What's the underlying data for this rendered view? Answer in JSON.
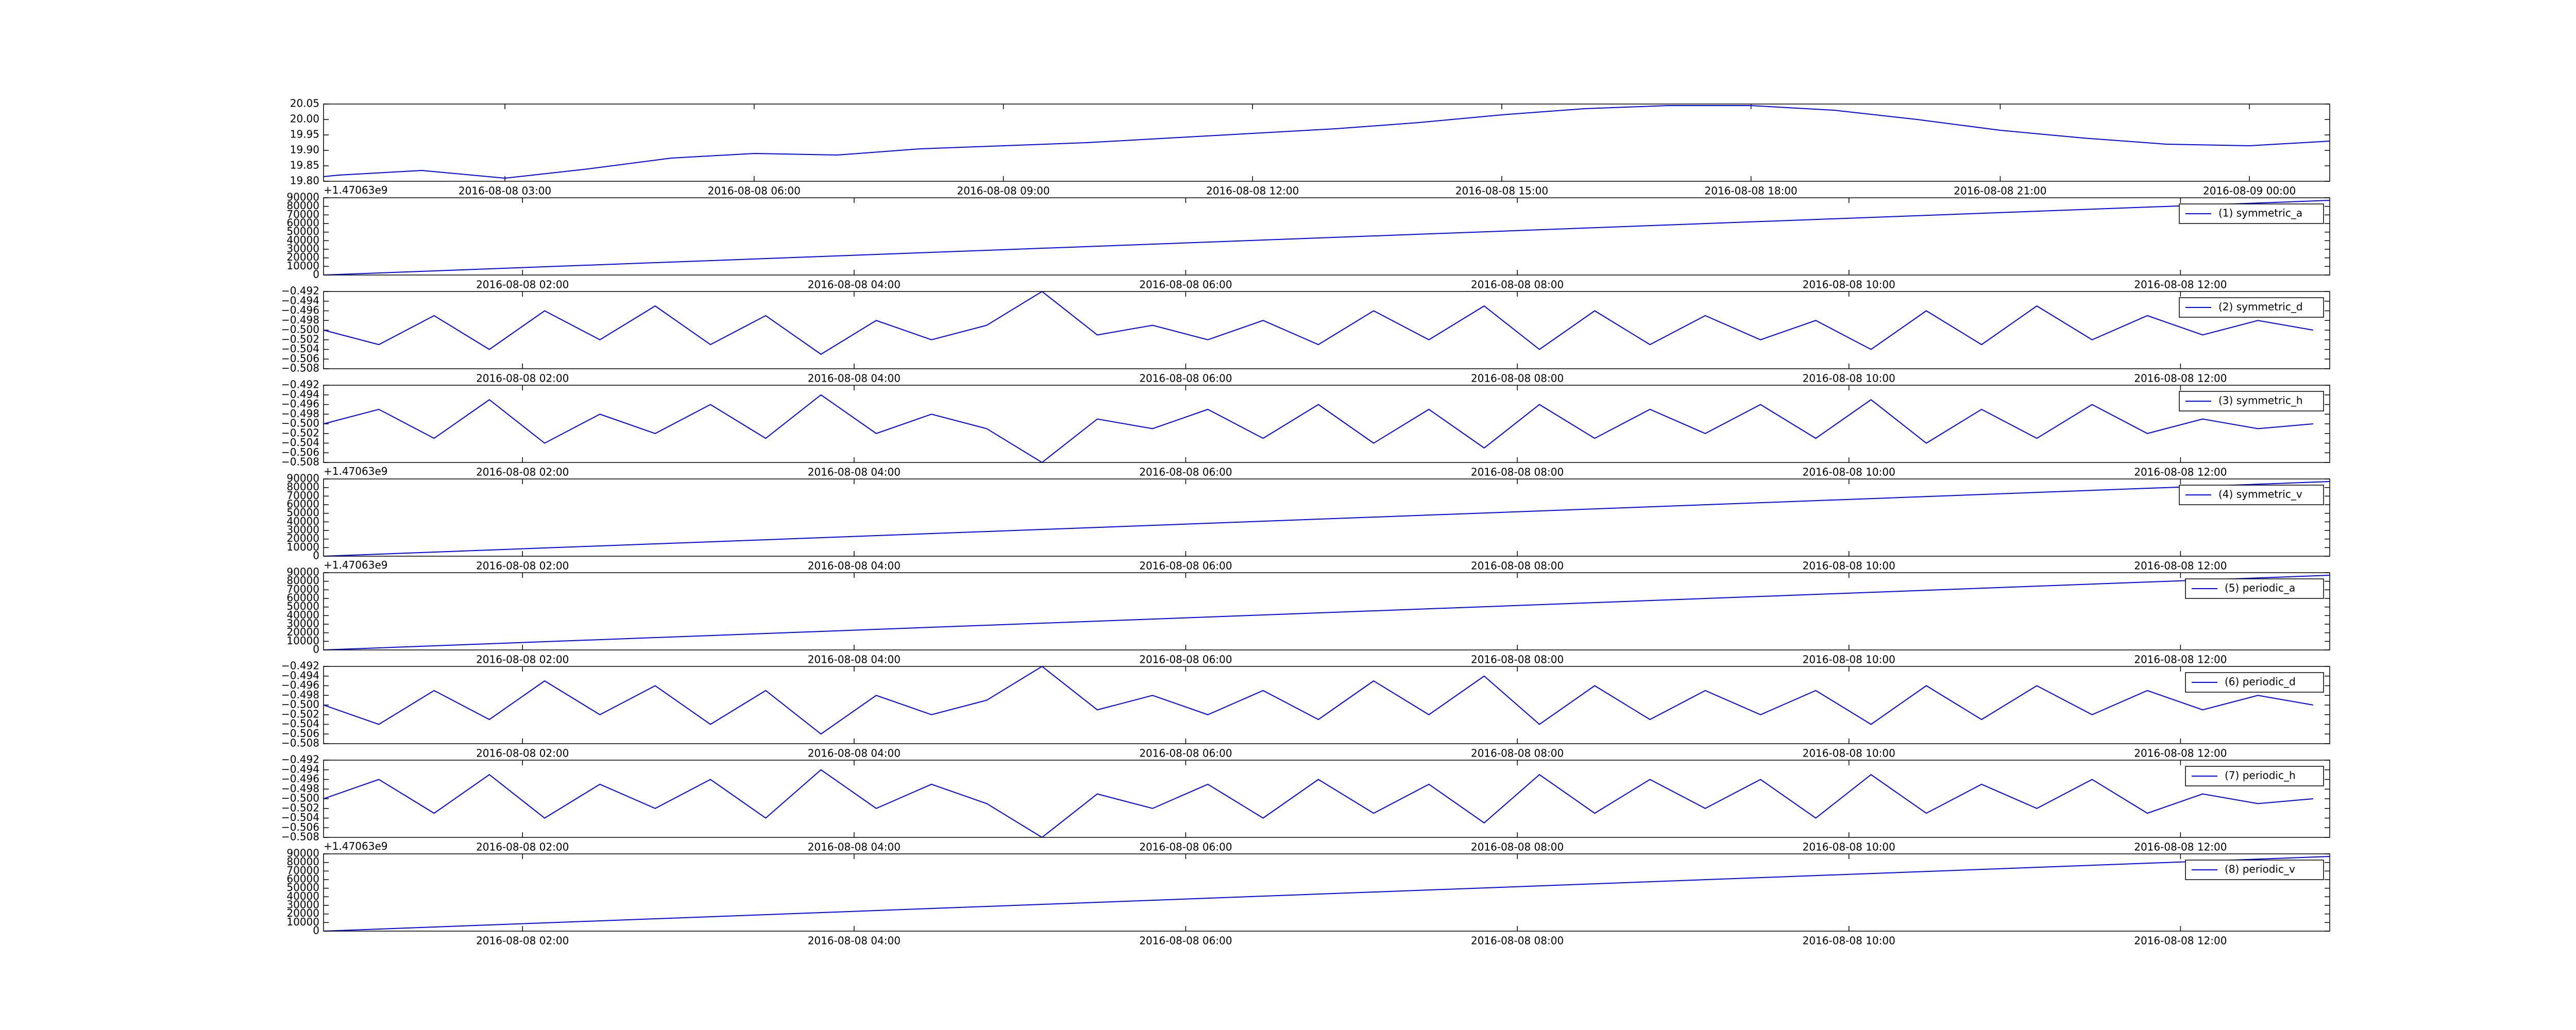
{
  "chart_data": [
    {
      "type": "line",
      "color": "#0000ff",
      "x": [
        "2016-08-08 00:49",
        "2016-08-08 01:00",
        "2016-08-08 02:00",
        "2016-08-08 03:00",
        "2016-08-08 04:00",
        "2016-08-08 05:00",
        "2016-08-08 06:00",
        "2016-08-08 07:00",
        "2016-08-08 08:00",
        "2016-08-08 09:00",
        "2016-08-08 10:00",
        "2016-08-08 11:00",
        "2016-08-08 12:00",
        "2016-08-08 13:00",
        "2016-08-08 14:00",
        "2016-08-08 15:00",
        "2016-08-08 16:00",
        "2016-08-08 17:00",
        "2016-08-08 18:00",
        "2016-08-08 19:00",
        "2016-08-08 20:00",
        "2016-08-08 21:00",
        "2016-08-08 22:00",
        "2016-08-08 23:00",
        "2016-08-09 00:00",
        "2016-08-09 00:58"
      ],
      "values": [
        19.815,
        19.82,
        19.835,
        19.81,
        19.84,
        19.875,
        19.89,
        19.885,
        19.905,
        19.915,
        19.925,
        19.94,
        19.955,
        19.97,
        19.99,
        20.015,
        20.035,
        20.045,
        20.045,
        20.03,
        20.0,
        19.965,
        19.94,
        19.92,
        19.915,
        19.93
      ],
      "xlim": [
        "2016-08-08 00:49",
        "2016-08-09 00:58"
      ],
      "xticks": [
        "2016-08-08 03:00",
        "2016-08-08 06:00",
        "2016-08-08 09:00",
        "2016-08-08 12:00",
        "2016-08-08 15:00",
        "2016-08-08 18:00",
        "2016-08-08 21:00",
        "2016-08-09 00:00"
      ],
      "ylim": [
        19.8,
        20.05
      ],
      "yticks": [
        {
          "value": 19.8,
          "label": "19.80"
        },
        {
          "value": 19.85,
          "label": "19.85"
        },
        {
          "value": 19.9,
          "label": "19.90"
        },
        {
          "value": 19.95,
          "label": "19.95"
        },
        {
          "value": 20.0,
          "label": "20.00"
        },
        {
          "value": 20.05,
          "label": "20.05"
        }
      ]
    },
    {
      "type": "line",
      "offset_text": "+1.47063e9",
      "legend": "upper right",
      "series": [
        {
          "name": "(1) symmetric_a",
          "color": "#0000ff",
          "x": [
            "2016-08-08 00:48",
            "2016-08-08 12:54"
          ],
          "values": [
            0,
            87000
          ]
        }
      ],
      "xlim": [
        "2016-08-08 00:48",
        "2016-08-08 12:54"
      ],
      "xticks": [
        "2016-08-08 02:00",
        "2016-08-08 04:00",
        "2016-08-08 06:00",
        "2016-08-08 08:00",
        "2016-08-08 10:00",
        "2016-08-08 12:00"
      ],
      "ylim": [
        0,
        90000
      ],
      "yticks": [
        0,
        10000,
        20000,
        30000,
        40000,
        50000,
        60000,
        70000,
        80000,
        90000
      ]
    },
    {
      "type": "line",
      "legend": "upper right",
      "series": [
        {
          "name": "(2) symmetric_d",
          "color": "#0000ff",
          "x": [
            "2016-08-08 00:48",
            "2016-08-08 01:08",
            "2016-08-08 01:28",
            "2016-08-08 01:48",
            "2016-08-08 02:08",
            "2016-08-08 02:28",
            "2016-08-08 02:48",
            "2016-08-08 03:08",
            "2016-08-08 03:28",
            "2016-08-08 03:48",
            "2016-08-08 04:08",
            "2016-08-08 04:28",
            "2016-08-08 04:48",
            "2016-08-08 05:08",
            "2016-08-08 05:28",
            "2016-08-08 05:48",
            "2016-08-08 06:08",
            "2016-08-08 06:28",
            "2016-08-08 06:48",
            "2016-08-08 07:08",
            "2016-08-08 07:28",
            "2016-08-08 07:48",
            "2016-08-08 08:08",
            "2016-08-08 08:28",
            "2016-08-08 08:48",
            "2016-08-08 09:08",
            "2016-08-08 09:28",
            "2016-08-08 09:48",
            "2016-08-08 10:08",
            "2016-08-08 10:28",
            "2016-08-08 10:48",
            "2016-08-08 11:08",
            "2016-08-08 11:28",
            "2016-08-08 11:48",
            "2016-08-08 12:08",
            "2016-08-08 12:28",
            "2016-08-08 12:48"
          ],
          "values": [
            -0.5,
            -0.503,
            -0.497,
            -0.504,
            -0.496,
            -0.502,
            -0.495,
            -0.503,
            -0.497,
            -0.505,
            -0.498,
            -0.502,
            -0.499,
            -0.492,
            -0.501,
            -0.499,
            -0.502,
            -0.498,
            -0.503,
            -0.496,
            -0.502,
            -0.495,
            -0.504,
            -0.496,
            -0.503,
            -0.497,
            -0.502,
            -0.498,
            -0.504,
            -0.496,
            -0.503,
            -0.495,
            -0.502,
            -0.497,
            -0.501,
            -0.498,
            -0.5
          ]
        }
      ],
      "xlim": [
        "2016-08-08 00:48",
        "2016-08-08 12:54"
      ],
      "xticks": [
        "2016-08-08 02:00",
        "2016-08-08 04:00",
        "2016-08-08 06:00",
        "2016-08-08 08:00",
        "2016-08-08 10:00",
        "2016-08-08 12:00"
      ],
      "ylim": [
        -0.508,
        -0.492
      ],
      "yticks": [
        {
          "value": -0.508,
          "label": "−0.508"
        },
        {
          "value": -0.506,
          "label": "−0.506"
        },
        {
          "value": -0.504,
          "label": "−0.504"
        },
        {
          "value": -0.502,
          "label": "−0.502"
        },
        {
          "value": -0.5,
          "label": "−0.500"
        },
        {
          "value": -0.498,
          "label": "−0.498"
        },
        {
          "value": -0.496,
          "label": "−0.496"
        },
        {
          "value": -0.494,
          "label": "−0.494"
        },
        {
          "value": -0.492,
          "label": "−0.492"
        }
      ]
    },
    {
      "type": "line",
      "legend": "upper right",
      "series": [
        {
          "name": "(3) symmetric_h",
          "color": "#0000ff",
          "x": [
            "2016-08-08 00:48",
            "2016-08-08 01:08",
            "2016-08-08 01:28",
            "2016-08-08 01:48",
            "2016-08-08 02:08",
            "2016-08-08 02:28",
            "2016-08-08 02:48",
            "2016-08-08 03:08",
            "2016-08-08 03:28",
            "2016-08-08 03:48",
            "2016-08-08 04:08",
            "2016-08-08 04:28",
            "2016-08-08 04:48",
            "2016-08-08 05:08",
            "2016-08-08 05:28",
            "2016-08-08 05:48",
            "2016-08-08 06:08",
            "2016-08-08 06:28",
            "2016-08-08 06:48",
            "2016-08-08 07:08",
            "2016-08-08 07:28",
            "2016-08-08 07:48",
            "2016-08-08 08:08",
            "2016-08-08 08:28",
            "2016-08-08 08:48",
            "2016-08-08 09:08",
            "2016-08-08 09:28",
            "2016-08-08 09:48",
            "2016-08-08 10:08",
            "2016-08-08 10:28",
            "2016-08-08 10:48",
            "2016-08-08 11:08",
            "2016-08-08 11:28",
            "2016-08-08 11:48",
            "2016-08-08 12:08",
            "2016-08-08 12:28",
            "2016-08-08 12:48"
          ],
          "values": [
            -0.5,
            -0.497,
            -0.503,
            -0.495,
            -0.504,
            -0.498,
            -0.502,
            -0.496,
            -0.503,
            -0.494,
            -0.502,
            -0.498,
            -0.501,
            -0.508,
            -0.499,
            -0.501,
            -0.497,
            -0.503,
            -0.496,
            -0.504,
            -0.497,
            -0.505,
            -0.496,
            -0.503,
            -0.497,
            -0.502,
            -0.496,
            -0.503,
            -0.495,
            -0.504,
            -0.497,
            -0.503,
            -0.496,
            -0.502,
            -0.499,
            -0.501,
            -0.5
          ]
        }
      ],
      "xlim": [
        "2016-08-08 00:48",
        "2016-08-08 12:54"
      ],
      "xticks": [
        "2016-08-08 02:00",
        "2016-08-08 04:00",
        "2016-08-08 06:00",
        "2016-08-08 08:00",
        "2016-08-08 10:00",
        "2016-08-08 12:00"
      ],
      "ylim": [
        -0.508,
        -0.492
      ],
      "yticks": [
        {
          "value": -0.508,
          "label": "−0.508"
        },
        {
          "value": -0.506,
          "label": "−0.506"
        },
        {
          "value": -0.504,
          "label": "−0.504"
        },
        {
          "value": -0.502,
          "label": "−0.502"
        },
        {
          "value": -0.5,
          "label": "−0.500"
        },
        {
          "value": -0.498,
          "label": "−0.498"
        },
        {
          "value": -0.496,
          "label": "−0.496"
        },
        {
          "value": -0.494,
          "label": "−0.494"
        },
        {
          "value": -0.492,
          "label": "−0.492"
        }
      ]
    },
    {
      "type": "line",
      "offset_text": "+1.47063e9",
      "legend": "upper right",
      "series": [
        {
          "name": "(4) symmetric_v",
          "color": "#0000ff",
          "x": [
            "2016-08-08 00:48",
            "2016-08-08 12:54"
          ],
          "values": [
            0,
            87000
          ]
        }
      ],
      "xlim": [
        "2016-08-08 00:48",
        "2016-08-08 12:54"
      ],
      "xticks": [
        "2016-08-08 02:00",
        "2016-08-08 04:00",
        "2016-08-08 06:00",
        "2016-08-08 08:00",
        "2016-08-08 10:00",
        "2016-08-08 12:00"
      ],
      "ylim": [
        0,
        90000
      ],
      "yticks": [
        0,
        10000,
        20000,
        30000,
        40000,
        50000,
        60000,
        70000,
        80000,
        90000
      ]
    },
    {
      "type": "line",
      "offset_text": "+1.47063e9",
      "legend": "upper right",
      "series": [
        {
          "name": "(5) periodic_a",
          "color": "#0000ff",
          "x": [
            "2016-08-08 00:48",
            "2016-08-08 12:54"
          ],
          "values": [
            0,
            87000
          ]
        }
      ],
      "xlim": [
        "2016-08-08 00:48",
        "2016-08-08 12:54"
      ],
      "xticks": [
        "2016-08-08 02:00",
        "2016-08-08 04:00",
        "2016-08-08 06:00",
        "2016-08-08 08:00",
        "2016-08-08 10:00",
        "2016-08-08 12:00"
      ],
      "ylim": [
        0,
        90000
      ],
      "yticks": [
        0,
        10000,
        20000,
        30000,
        40000,
        50000,
        60000,
        70000,
        80000,
        90000
      ]
    },
    {
      "type": "line",
      "legend": "upper right",
      "series": [
        {
          "name": "(6) periodic_d",
          "color": "#0000ff",
          "x": [
            "2016-08-08 00:48",
            "2016-08-08 01:08",
            "2016-08-08 01:28",
            "2016-08-08 01:48",
            "2016-08-08 02:08",
            "2016-08-08 02:28",
            "2016-08-08 02:48",
            "2016-08-08 03:08",
            "2016-08-08 03:28",
            "2016-08-08 03:48",
            "2016-08-08 04:08",
            "2016-08-08 04:28",
            "2016-08-08 04:48",
            "2016-08-08 05:08",
            "2016-08-08 05:28",
            "2016-08-08 05:48",
            "2016-08-08 06:08",
            "2016-08-08 06:28",
            "2016-08-08 06:48",
            "2016-08-08 07:08",
            "2016-08-08 07:28",
            "2016-08-08 07:48",
            "2016-08-08 08:08",
            "2016-08-08 08:28",
            "2016-08-08 08:48",
            "2016-08-08 09:08",
            "2016-08-08 09:28",
            "2016-08-08 09:48",
            "2016-08-08 10:08",
            "2016-08-08 10:28",
            "2016-08-08 10:48",
            "2016-08-08 11:08",
            "2016-08-08 11:28",
            "2016-08-08 11:48",
            "2016-08-08 12:08",
            "2016-08-08 12:28",
            "2016-08-08 12:48"
          ],
          "values": [
            -0.5,
            -0.504,
            -0.497,
            -0.503,
            -0.495,
            -0.502,
            -0.496,
            -0.504,
            -0.497,
            -0.506,
            -0.498,
            -0.502,
            -0.499,
            -0.492,
            -0.501,
            -0.498,
            -0.502,
            -0.497,
            -0.503,
            -0.495,
            -0.502,
            -0.494,
            -0.504,
            -0.496,
            -0.503,
            -0.497,
            -0.502,
            -0.497,
            -0.504,
            -0.496,
            -0.503,
            -0.496,
            -0.502,
            -0.497,
            -0.501,
            -0.498,
            -0.5
          ]
        }
      ],
      "xlim": [
        "2016-08-08 00:48",
        "2016-08-08 12:54"
      ],
      "xticks": [
        "2016-08-08 02:00",
        "2016-08-08 04:00",
        "2016-08-08 06:00",
        "2016-08-08 08:00",
        "2016-08-08 10:00",
        "2016-08-08 12:00"
      ],
      "ylim": [
        -0.508,
        -0.492
      ],
      "yticks": [
        {
          "value": -0.508,
          "label": "−0.508"
        },
        {
          "value": -0.506,
          "label": "−0.506"
        },
        {
          "value": -0.504,
          "label": "−0.504"
        },
        {
          "value": -0.502,
          "label": "−0.502"
        },
        {
          "value": -0.5,
          "label": "−0.500"
        },
        {
          "value": -0.498,
          "label": "−0.498"
        },
        {
          "value": -0.496,
          "label": "−0.496"
        },
        {
          "value": -0.494,
          "label": "−0.494"
        },
        {
          "value": -0.492,
          "label": "−0.492"
        }
      ]
    },
    {
      "type": "line",
      "legend": "upper right",
      "series": [
        {
          "name": "(7) periodic_h",
          "color": "#0000ff",
          "x": [
            "2016-08-08 00:48",
            "2016-08-08 01:08",
            "2016-08-08 01:28",
            "2016-08-08 01:48",
            "2016-08-08 02:08",
            "2016-08-08 02:28",
            "2016-08-08 02:48",
            "2016-08-08 03:08",
            "2016-08-08 03:28",
            "2016-08-08 03:48",
            "2016-08-08 04:08",
            "2016-08-08 04:28",
            "2016-08-08 04:48",
            "2016-08-08 05:08",
            "2016-08-08 05:28",
            "2016-08-08 05:48",
            "2016-08-08 06:08",
            "2016-08-08 06:28",
            "2016-08-08 06:48",
            "2016-08-08 07:08",
            "2016-08-08 07:28",
            "2016-08-08 07:48",
            "2016-08-08 08:08",
            "2016-08-08 08:28",
            "2016-08-08 08:48",
            "2016-08-08 09:08",
            "2016-08-08 09:28",
            "2016-08-08 09:48",
            "2016-08-08 10:08",
            "2016-08-08 10:28",
            "2016-08-08 10:48",
            "2016-08-08 11:08",
            "2016-08-08 11:28",
            "2016-08-08 11:48",
            "2016-08-08 12:08",
            "2016-08-08 12:28",
            "2016-08-08 12:48"
          ],
          "values": [
            -0.5,
            -0.496,
            -0.503,
            -0.495,
            -0.504,
            -0.497,
            -0.502,
            -0.496,
            -0.504,
            -0.494,
            -0.502,
            -0.497,
            -0.501,
            -0.508,
            -0.499,
            -0.502,
            -0.497,
            -0.504,
            -0.496,
            -0.503,
            -0.497,
            -0.505,
            -0.495,
            -0.503,
            -0.496,
            -0.502,
            -0.496,
            -0.504,
            -0.495,
            -0.503,
            -0.497,
            -0.502,
            -0.496,
            -0.503,
            -0.499,
            -0.501,
            -0.5
          ]
        }
      ],
      "xlim": [
        "2016-08-08 00:48",
        "2016-08-08 12:54"
      ],
      "xticks": [
        "2016-08-08 02:00",
        "2016-08-08 04:00",
        "2016-08-08 06:00",
        "2016-08-08 08:00",
        "2016-08-08 10:00",
        "2016-08-08 12:00"
      ],
      "ylim": [
        -0.508,
        -0.492
      ],
      "yticks": [
        {
          "value": -0.508,
          "label": "−0.508"
        },
        {
          "value": -0.506,
          "label": "−0.506"
        },
        {
          "value": -0.504,
          "label": "−0.504"
        },
        {
          "value": -0.502,
          "label": "−0.502"
        },
        {
          "value": -0.5,
          "label": "−0.500"
        },
        {
          "value": -0.498,
          "label": "−0.498"
        },
        {
          "value": -0.496,
          "label": "−0.496"
        },
        {
          "value": -0.494,
          "label": "−0.494"
        },
        {
          "value": -0.492,
          "label": "−0.492"
        }
      ]
    },
    {
      "type": "line",
      "offset_text": "+1.47063e9",
      "legend": "upper right",
      "series": [
        {
          "name": "(8) periodic_v",
          "color": "#0000ff",
          "x": [
            "2016-08-08 00:48",
            "2016-08-08 12:54"
          ],
          "values": [
            0,
            87000
          ]
        }
      ],
      "xlim": [
        "2016-08-08 00:48",
        "2016-08-08 12:54"
      ],
      "xticks": [
        "2016-08-08 02:00",
        "2016-08-08 04:00",
        "2016-08-08 06:00",
        "2016-08-08 08:00",
        "2016-08-08 10:00",
        "2016-08-08 12:00"
      ],
      "ylim": [
        0,
        90000
      ],
      "yticks": [
        0,
        10000,
        20000,
        30000,
        40000,
        50000,
        60000,
        70000,
        80000,
        90000
      ]
    }
  ]
}
